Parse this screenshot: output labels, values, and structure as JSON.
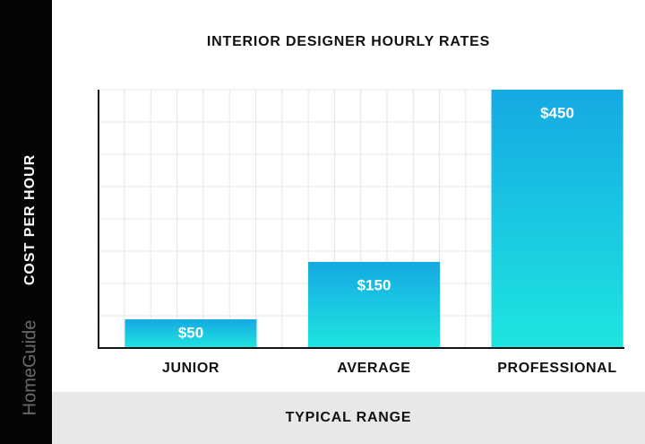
{
  "chart_data": {
    "type": "bar",
    "title": "INTERIOR DESIGNER HOURLY RATES",
    "y_label": "COST PER HOUR",
    "x_label": "TYPICAL RANGE",
    "watermark": "HomeGuide",
    "categories": [
      "JUNIOR",
      "AVERAGE",
      "PROFESSIONAL"
    ],
    "values": [
      50,
      150,
      450
    ],
    "value_labels": [
      "$50",
      "$150",
      "$450"
    ],
    "gradient": [
      "#15a9e3",
      "#1ee5e0"
    ],
    "ylim": [
      0,
      450
    ],
    "grid": true
  }
}
